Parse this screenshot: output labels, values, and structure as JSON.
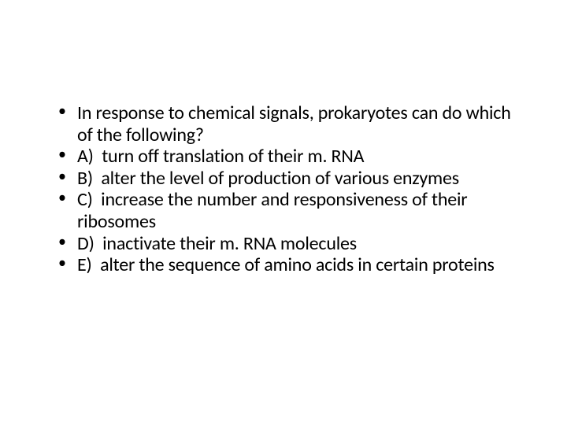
{
  "slide": {
    "background_color": "#ffffff",
    "text_color": "#000000",
    "font_family": "Calibri",
    "font_size_pt": 24,
    "line_height": 1.15,
    "bullet_char": "•",
    "question": "In response to chemical signals, prokaryotes can do which of the following?",
    "options": [
      {
        "label": "A)",
        "text": "turn off translation of their m. RNA"
      },
      {
        "label": "B)",
        "text": "alter the level of production of various enzymes"
      },
      {
        "label": "C)",
        "text": "increase the number and responsiveness of their ribosomes"
      },
      {
        "label": "D)",
        "text": "inactivate their m. RNA molecules"
      },
      {
        "label": "E)",
        "text": "alter the sequence of amino acids in certain proteins"
      }
    ]
  }
}
